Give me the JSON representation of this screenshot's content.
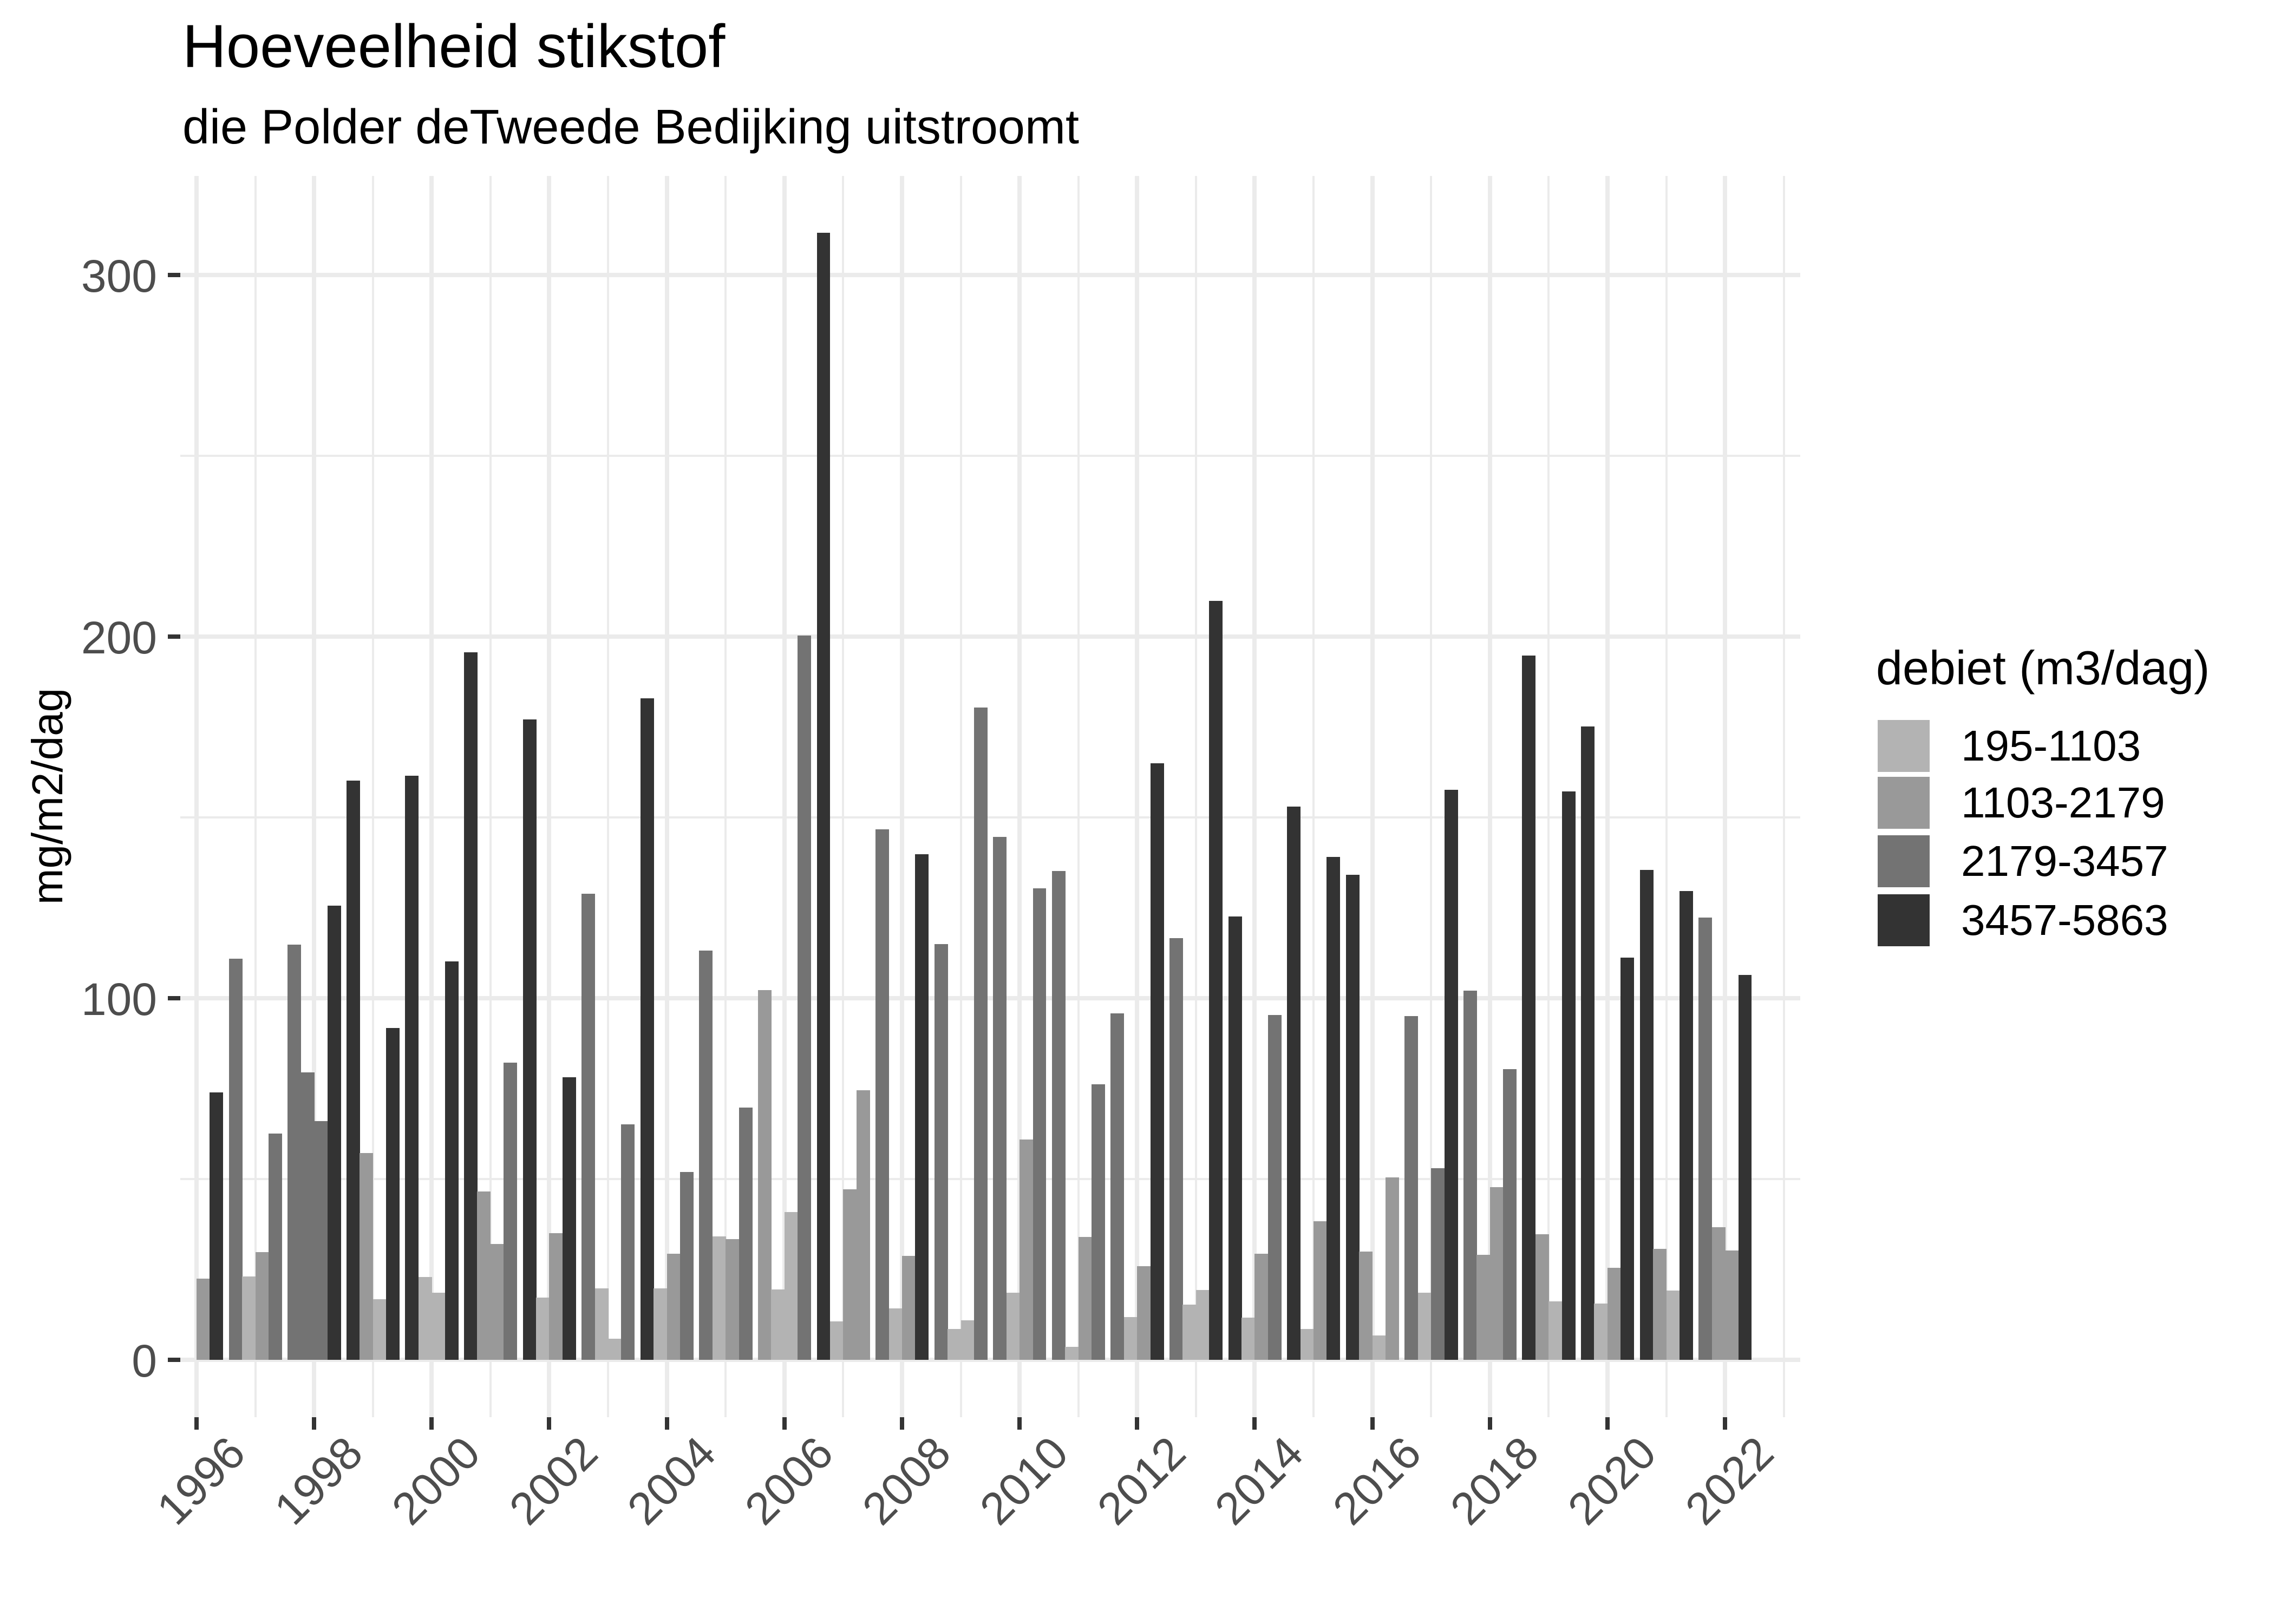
{
  "header": {
    "title": "Hoeveelheid stikstof",
    "subtitle": "die Polder deTweede Bedijking uitstroomt"
  },
  "axes": {
    "ylabel": "mg/m2/dag",
    "y_ticks": [
      0,
      100,
      200,
      300
    ],
    "y_minor": [
      50,
      150,
      250
    ],
    "x_ticks": [
      "1996",
      "1998",
      "2000",
      "2002",
      "2004",
      "2006",
      "2008",
      "2010",
      "2012",
      "2014",
      "2016",
      "2018",
      "2020",
      "2022"
    ]
  },
  "legend": {
    "title": "debiet (m3/dag)",
    "items": [
      {
        "label": "195-1103",
        "color": "#B3B3B3"
      },
      {
        "label": "1103-2179",
        "color": "#999999"
      },
      {
        "label": "2179-3457",
        "color": "#737373"
      },
      {
        "label": "3457-5863",
        "color": "#333333"
      }
    ]
  },
  "chart_data": {
    "type": "bar",
    "title": "Hoeveelheid stikstof",
    "subtitle": "die Polder deTweede Bedijking uitstroomt",
    "xlabel": "",
    "ylabel": "mg/m2/dag",
    "ylim": [
      0,
      320
    ],
    "xlim": [
      1995.7,
      2023.3
    ],
    "grid": true,
    "legend_position": "right",
    "legend_title": "debiet (m3/dag)",
    "classes": [
      "195-1103",
      "1103-2179",
      "2179-3457",
      "3457-5863"
    ],
    "note": "Per year four dodged bars (seasonal/quarterly periods); each bar colored by discharge class index (0..3). null = no bar.",
    "years": [
      {
        "year": 1996,
        "bars": [
          null,
          null,
          {
            "cls": 1,
            "value": 22.5
          },
          {
            "cls": 3,
            "value": 74
          }
        ]
      },
      {
        "year": 1997,
        "bars": [
          {
            "cls": 2,
            "value": 111
          },
          {
            "cls": 0,
            "value": 23
          },
          {
            "cls": 1,
            "value": 29.8
          },
          {
            "cls": 2,
            "value": 62.6
          }
        ]
      },
      {
        "year": 1998,
        "bars": [
          {
            "cls": 2,
            "value": 114.8
          },
          {
            "cls": 2,
            "value": 79.5
          },
          {
            "cls": 2,
            "value": 66
          },
          {
            "cls": 3,
            "value": 125.6
          }
        ]
      },
      {
        "year": 1999,
        "bars": [
          {
            "cls": 3,
            "value": 160.2
          },
          {
            "cls": 1,
            "value": 57.2
          },
          {
            "cls": 0,
            "value": 16.8
          },
          {
            "cls": 3,
            "value": 91.8
          }
        ]
      },
      {
        "year": 2000,
        "bars": [
          {
            "cls": 3,
            "value": 161.6
          },
          {
            "cls": 0,
            "value": 22.9
          },
          {
            "cls": 0,
            "value": 18.6
          },
          {
            "cls": 3,
            "value": 110.2
          }
        ]
      },
      {
        "year": 2001,
        "bars": [
          {
            "cls": 3,
            "value": 195.7
          },
          {
            "cls": 1,
            "value": 46.6
          },
          {
            "cls": 1,
            "value": 32.1
          },
          {
            "cls": 2,
            "value": 82.2
          }
        ]
      },
      {
        "year": 2002,
        "bars": [
          {
            "cls": 3,
            "value": 177.1
          },
          {
            "cls": 0,
            "value": 17.2
          },
          {
            "cls": 1,
            "value": 35
          },
          {
            "cls": 3,
            "value": 78.2
          }
        ]
      },
      {
        "year": 2003,
        "bars": [
          {
            "cls": 2,
            "value": 128.9
          },
          {
            "cls": 0,
            "value": 19.8
          },
          {
            "cls": 0,
            "value": 5.8
          },
          {
            "cls": 2,
            "value": 65.1
          }
        ]
      },
      {
        "year": 2004,
        "bars": [
          {
            "cls": 3,
            "value": 183
          },
          {
            "cls": 0,
            "value": 19.7
          },
          {
            "cls": 1,
            "value": 29.3
          },
          {
            "cls": 2,
            "value": 52
          }
        ]
      },
      {
        "year": 2005,
        "bars": [
          {
            "cls": 2,
            "value": 113.2
          },
          {
            "cls": 0,
            "value": 34.1
          },
          {
            "cls": 1,
            "value": 33.4
          },
          {
            "cls": 2,
            "value": 69.8
          }
        ]
      },
      {
        "year": 2006,
        "bars": [
          {
            "cls": 1,
            "value": 102.3
          },
          {
            "cls": 0,
            "value": 19.4
          },
          {
            "cls": 0,
            "value": 40.8
          },
          {
            "cls": 2,
            "value": 200.3
          }
        ]
      },
      {
        "year": 2007,
        "bars": [
          {
            "cls": 3,
            "value": 311.7
          },
          {
            "cls": 0,
            "value": 10.7
          },
          {
            "cls": 1,
            "value": 47.1
          },
          {
            "cls": 1,
            "value": 74.5
          }
        ]
      },
      {
        "year": 2008,
        "bars": [
          {
            "cls": 2,
            "value": 146.7
          },
          {
            "cls": 0,
            "value": 14.2
          },
          {
            "cls": 1,
            "value": 28.8
          },
          {
            "cls": 3,
            "value": 139.8
          }
        ]
      },
      {
        "year": 2009,
        "bars": [
          {
            "cls": 2,
            "value": 115
          },
          {
            "cls": 0,
            "value": 8.5
          },
          {
            "cls": 0,
            "value": 10.9
          },
          {
            "cls": 2,
            "value": 180.4
          }
        ]
      },
      {
        "year": 2010,
        "bars": [
          {
            "cls": 2,
            "value": 144.6
          },
          {
            "cls": 0,
            "value": 18.5
          },
          {
            "cls": 1,
            "value": 61
          },
          {
            "cls": 2,
            "value": 130.4
          }
        ]
      },
      {
        "year": 2011,
        "bars": [
          {
            "cls": 2,
            "value": 135.2
          },
          {
            "cls": 0,
            "value": 3.6
          },
          {
            "cls": 1,
            "value": 34
          },
          {
            "cls": 2,
            "value": 76.2
          }
        ]
      },
      {
        "year": 2012,
        "bars": [
          {
            "cls": 2,
            "value": 95.8
          },
          {
            "cls": 0,
            "value": 11.9
          },
          {
            "cls": 1,
            "value": 25.9
          },
          {
            "cls": 3,
            "value": 164.9
          }
        ]
      },
      {
        "year": 2013,
        "bars": [
          {
            "cls": 2,
            "value": 116.6
          },
          {
            "cls": 0,
            "value": 15.2
          },
          {
            "cls": 0,
            "value": 19.3
          },
          {
            "cls": 3,
            "value": 209.9
          }
        ]
      },
      {
        "year": 2014,
        "bars": [
          {
            "cls": 3,
            "value": 122.6
          },
          {
            "cls": 0,
            "value": 11.7
          },
          {
            "cls": 1,
            "value": 29.4
          },
          {
            "cls": 2,
            "value": 95.3
          }
        ]
      },
      {
        "year": 2015,
        "bars": [
          {
            "cls": 3,
            "value": 153
          },
          {
            "cls": 0,
            "value": 8.6
          },
          {
            "cls": 1,
            "value": 38.3
          },
          {
            "cls": 3,
            "value": 139
          }
        ]
      },
      {
        "year": 2016,
        "bars": [
          {
            "cls": 3,
            "value": 134.2
          },
          {
            "cls": 1,
            "value": 29.9
          },
          {
            "cls": 0,
            "value": 6.7
          },
          {
            "cls": 1,
            "value": 50.4
          }
        ]
      },
      {
        "year": 2017,
        "bars": [
          {
            "cls": 2,
            "value": 95.1
          },
          {
            "cls": 0,
            "value": 18.5
          },
          {
            "cls": 2,
            "value": 53
          },
          {
            "cls": 3,
            "value": 157.7
          }
        ]
      },
      {
        "year": 2018,
        "bars": [
          {
            "cls": 2,
            "value": 102.1
          },
          {
            "cls": 1,
            "value": 29.1
          },
          {
            "cls": 1,
            "value": 47.7
          },
          {
            "cls": 2,
            "value": 80.4
          }
        ]
      },
      {
        "year": 2019,
        "bars": [
          {
            "cls": 3,
            "value": 194.8
          },
          {
            "cls": 1,
            "value": 34.8
          },
          {
            "cls": 0,
            "value": 16.2
          },
          {
            "cls": 3,
            "value": 157.2
          }
        ]
      },
      {
        "year": 2020,
        "bars": [
          {
            "cls": 3,
            "value": 175.2
          },
          {
            "cls": 0,
            "value": 15.5
          },
          {
            "cls": 1,
            "value": 25.4
          },
          {
            "cls": 3,
            "value": 111.2
          }
        ]
      },
      {
        "year": 2021,
        "bars": [
          {
            "cls": 3,
            "value": 135.5
          },
          {
            "cls": 1,
            "value": 30.7
          },
          {
            "cls": 0,
            "value": 19.2
          },
          {
            "cls": 3,
            "value": 129.7
          }
        ]
      },
      {
        "year": 2022,
        "bars": [
          {
            "cls": 2,
            "value": 122.3
          },
          {
            "cls": 1,
            "value": 36.7
          },
          {
            "cls": 1,
            "value": 30.2
          },
          {
            "cls": 3,
            "value": 106.4
          }
        ]
      }
    ]
  }
}
